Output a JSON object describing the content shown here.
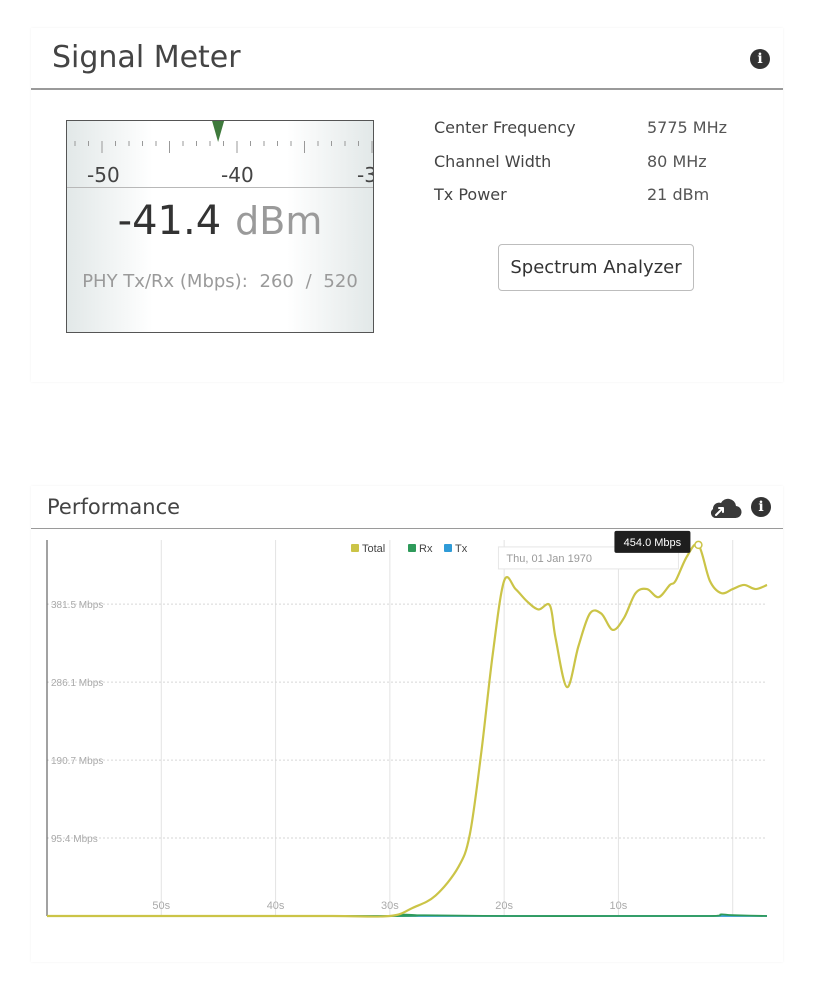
{
  "signal_meter": {
    "title": "Signal Meter",
    "scale_labels": [
      "-50",
      "-40",
      "-3"
    ],
    "value": "-41.4",
    "unit": "dBm",
    "phy_label": "PHY Tx/Rx (Mbps):",
    "phy_tx": "260",
    "phy_sep": "/",
    "phy_rx": "520",
    "needle_dbm": -41.4,
    "center_frequency": {
      "label": "Center Frequency",
      "value": "5775 MHz"
    },
    "channel_width": {
      "label": "Channel Width",
      "value": "80 MHz"
    },
    "tx_power": {
      "label": "Tx Power",
      "value": "21 dBm"
    },
    "spectrum_button": "Spectrum Analyzer",
    "icons": {
      "info": "info-icon"
    }
  },
  "performance": {
    "title": "Performance",
    "icons": {
      "export": "cloud-export-icon",
      "info": "info-icon"
    },
    "tooltip": {
      "date": "Thu, 01 Jan 1970",
      "value": "454.0 Mbps"
    }
  },
  "chart_data": {
    "type": "line",
    "title": "",
    "xlabel": "",
    "ylabel": "",
    "y_tick_labels": [
      "95.4 Mbps",
      "190.7 Mbps",
      "286.1 Mbps",
      "381.5 Mbps"
    ],
    "y_ticks": [
      95.4,
      190.7,
      286.1,
      381.5
    ],
    "ylim": [
      0,
      460
    ],
    "x_tick_labels": [
      "50s",
      "40s",
      "30s",
      "20s",
      "10s"
    ],
    "x_ticks": [
      -50,
      -40,
      -30,
      -20,
      -10
    ],
    "xlim": [
      -60,
      3
    ],
    "grid": true,
    "legend_position": "top-center",
    "series": [
      {
        "name": "Total",
        "color": "#cbc447",
        "x": [
          -60,
          -45,
          -35,
          -30,
          -28,
          -26,
          -24,
          -23,
          -22,
          -21,
          -20,
          -19,
          -18,
          -17,
          -16,
          -15.5,
          -14.5,
          -13.5,
          -12.5,
          -11.5,
          -10.5,
          -9.5,
          -8.5,
          -7.5,
          -6.5,
          -5.5,
          -5,
          -4,
          -3,
          -2,
          -1,
          0,
          1,
          2,
          3
        ],
        "y": [
          0,
          0,
          0,
          0,
          10,
          25,
          60,
          100,
          200,
          320,
          410,
          400,
          385,
          375,
          380,
          340,
          280,
          330,
          370,
          370,
          350,
          365,
          395,
          400,
          390,
          405,
          410,
          440,
          454,
          410,
          395,
          400,
          405,
          400,
          405
        ]
      },
      {
        "name": "Rx",
        "color": "#2e9a5a",
        "x": [
          -60,
          -30,
          -29,
          -28,
          -20,
          -10,
          -2,
          -1,
          0,
          3
        ],
        "y": [
          0,
          0,
          2,
          1,
          0,
          0,
          0,
          2,
          1,
          0
        ]
      },
      {
        "name": "Tx",
        "color": "#2f9bd7",
        "x": [
          -60,
          3
        ],
        "y": [
          0,
          0
        ]
      }
    ]
  }
}
